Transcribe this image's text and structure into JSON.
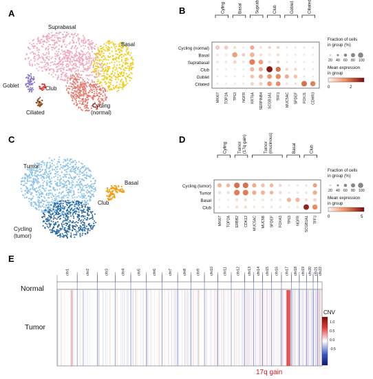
{
  "panels": {
    "A": {
      "letter": "A",
      "clusters": [
        {
          "label": "Suprabasal",
          "color": "#f0a7b8"
        },
        {
          "label": "Basal",
          "color": "#f0cc16"
        },
        {
          "label": "Goblet",
          "color": "#8c78c8"
        },
        {
          "label": "Club",
          "color": "#e0312b"
        },
        {
          "label": "Ciliated",
          "color": "#8b4513"
        },
        {
          "label": "Cycling\n(normal)",
          "color": "#e8786d"
        }
      ]
    },
    "B": {
      "letter": "B",
      "groups": [
        "Cyling",
        "Basal",
        "Suprabasal",
        "Club",
        "Goblet",
        "Ciliated"
      ],
      "genes": [
        "MKI67",
        "TOP2A",
        "TP63",
        "NGFR",
        "KRT6A",
        "SERPINB4",
        "SCGB1A1",
        "TFF3",
        "MUC5AC",
        "SPDEF",
        "FOXJ1",
        "CDHR3"
      ],
      "rows": [
        "Cycling (normal)",
        "Basal",
        "Suprabasal",
        "Club",
        "Goblet",
        "Ciliated"
      ],
      "legend": {
        "fraction_title": "Fraction of cells\nin group (%)",
        "fraction_ticks": [
          "20",
          "40",
          "60",
          "80",
          "100"
        ],
        "mean_title": "Mean expression\nin group",
        "mean_ticks": [
          "0",
          "2"
        ]
      }
    },
    "C": {
      "letter": "C",
      "clusters": [
        {
          "label": "Tumor",
          "color": "#8cc3ea"
        },
        {
          "label": "Basal",
          "color": "#f39c12"
        },
        {
          "label": "Club",
          "color": "#f39c12"
        },
        {
          "label": "Cycling\n(tumor)",
          "color": "#2c6aa3"
        }
      ]
    },
    "D": {
      "letter": "D",
      "groups": [
        "Cyling",
        "Tumor\n(17q gain)",
        "Tumor\n(mucinous)",
        "Basal",
        "Club"
      ],
      "genes": [
        "MKI67",
        "TOP2A",
        "ERBB2",
        "CDK12",
        "MUC5AC",
        "MUC5B",
        "SPDEF",
        "FOXA3",
        "TP63",
        "NGFR",
        "SCGB1A1",
        "TFF3"
      ],
      "rows": [
        "Cycling (tumor)",
        "Tumor",
        "Basal",
        "Club"
      ],
      "legend": {
        "fraction_title": "Fraction of cells\nin group (%)",
        "fraction_ticks": [
          "20",
          "40",
          "60",
          "80",
          "100"
        ],
        "mean_title": "Mean expression\nin group",
        "mean_ticks": [
          "0",
          "5"
        ]
      }
    },
    "E": {
      "letter": "E",
      "chromosomes": [
        "chr1",
        "chr2",
        "chr3",
        "chr4",
        "chr5",
        "chr6",
        "chr7",
        "chr8",
        "chr9",
        "chr10",
        "chr11",
        "chr12",
        "chr13",
        "chr14",
        "chr15",
        "chr16",
        "chr17",
        "chr18",
        "chr19",
        "chr20",
        "chr21",
        "chr22"
      ],
      "row_labels": [
        "Normal",
        "Tumor"
      ],
      "cnv_title": "CNV",
      "cnv_ticks": [
        "1.0",
        "0.5",
        "0.0",
        "-0.5"
      ],
      "annotation": "17q gain"
    }
  }
}
